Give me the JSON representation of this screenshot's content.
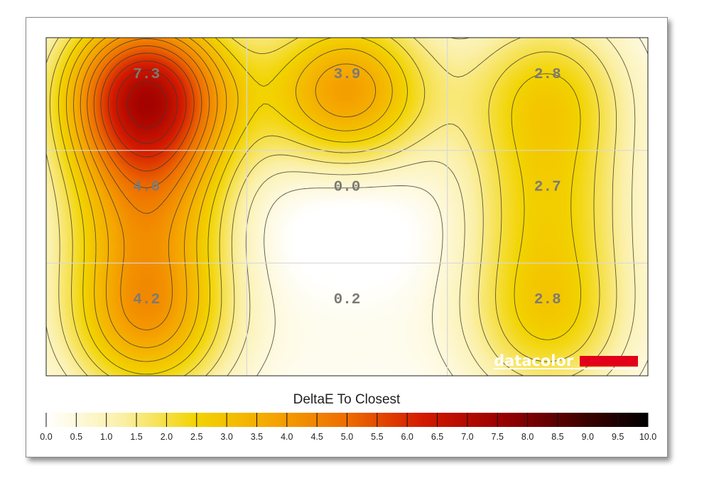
{
  "chart_data": {
    "type": "heatmap",
    "title": "DeltaE To Closest",
    "grid": {
      "rows": 3,
      "cols": 3
    },
    "values": [
      [
        7.3,
        3.9,
        2.8
      ],
      [
        4.6,
        0.0,
        2.7
      ],
      [
        4.2,
        0.2,
        2.8
      ]
    ],
    "labels": [
      [
        "7.3",
        "3.9",
        "2.8"
      ],
      [
        "4.6",
        "0.0",
        "2.7"
      ],
      [
        "4.2",
        "0.2",
        "2.8"
      ]
    ],
    "colorbar": {
      "min": 0,
      "max": 10,
      "step": 0.5,
      "tick_labels": [
        "0.0",
        "0.5",
        "1.0",
        "1.5",
        "2.0",
        "2.5",
        "3.0",
        "3.5",
        "4.0",
        "4.5",
        "5.0",
        "5.5",
        "6.0",
        "6.5",
        "7.0",
        "7.5",
        "8.0",
        "8.5",
        "9.0",
        "9.5",
        "10.0"
      ]
    },
    "contour_interval": 0.5,
    "gridlines": true,
    "colormap": [
      "#ffffff",
      "#fbf0a8",
      "#f2d400",
      "#f5a600",
      "#ee6d00",
      "#d41a00",
      "#9e0000",
      "#4a0000",
      "#000000"
    ]
  },
  "logo": {
    "text": "datacolor",
    "bar_color": "#e2001a"
  }
}
